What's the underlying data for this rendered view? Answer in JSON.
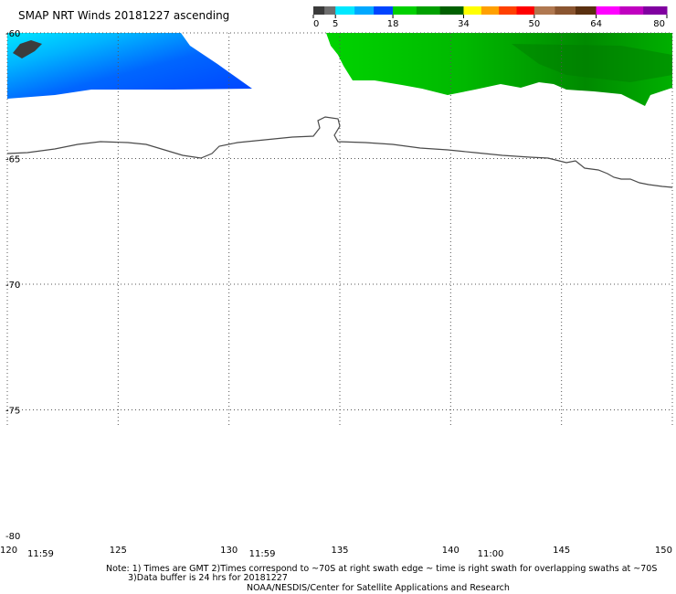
{
  "title": "SMAP NRT Winds 20181227 ascending",
  "legend": {
    "tick_labels": [
      "0",
      "5",
      "18",
      "34",
      "50",
      "64",
      "80"
    ],
    "bins": [
      {
        "from": 0,
        "to": 5,
        "colors": [
          "#3a3a3a",
          "#6e6e6e"
        ]
      },
      {
        "from": 5,
        "to": 18,
        "colors": [
          "#00e8ff",
          "#00a8ff",
          "#0044ff"
        ]
      },
      {
        "from": 18,
        "to": 34,
        "colors": [
          "#00d000",
          "#00a000",
          "#006000"
        ]
      },
      {
        "from": 34,
        "to": 50,
        "colors": [
          "#ffff00",
          "#ffa000",
          "#ff4000",
          "#ff0000"
        ]
      },
      {
        "from": 50,
        "to": 64,
        "colors": [
          "#b07850",
          "#8a5530",
          "#5a3010"
        ]
      },
      {
        "from": 64,
        "to": 80,
        "colors": [
          "#ff00ff",
          "#c000c0",
          "#8000a0"
        ]
      }
    ]
  },
  "map": {
    "lon_min": 120,
    "lon_max": 150,
    "lat_top": -60,
    "lat_bottom": -80,
    "lon_ticks": [
      "120",
      "125",
      "130",
      "135",
      "140",
      "145",
      "150"
    ],
    "lat_ticks": [
      "-60",
      "-65",
      "-70",
      "-75",
      "-80"
    ],
    "time_labels": [
      {
        "lon": 121.5,
        "text": "11:59"
      },
      {
        "lon": 131.5,
        "text": "11:59"
      },
      {
        "lon": 141.8,
        "text": "11:00"
      }
    ]
  },
  "footer": {
    "note_line1": "Note: 1) Times are GMT  2)Times correspond to ~70S at right swath edge ~ time is right swath for overlapping swaths at ~70S",
    "note_line2": "3)Data buffer is 24 hrs for 20181227",
    "credit": "NOAA/NESDIS/Center for Satellite Applications and Research"
  }
}
